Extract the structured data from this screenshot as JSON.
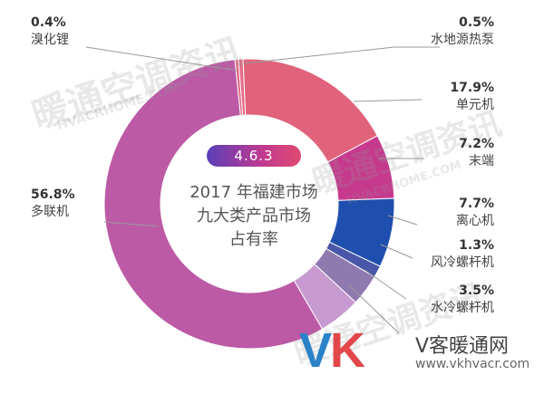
{
  "chart_data": {
    "type": "donut",
    "title": "2017 年福建市场 九大类产品市场 占有率",
    "title_lines": [
      "2017 年福建市场",
      "九大类产品市场",
      "占有率"
    ],
    "badge": "4.6.3",
    "slices": [
      {
        "name": "溴化锂",
        "value": 0.4,
        "label": "0.4%",
        "color": "#e46a86"
      },
      {
        "name": "水地源热泵",
        "value": 0.5,
        "label": "0.5%",
        "color": "#e46a86"
      },
      {
        "name": "单元机",
        "value": 17.9,
        "label": "17.9%",
        "color": "#e0637b"
      },
      {
        "name": "末端",
        "value": 7.2,
        "label": "7.2%",
        "color": "#c63a8e"
      },
      {
        "name": "离心机",
        "value": 7.7,
        "label": "7.7%",
        "color": "#1f4fae"
      },
      {
        "name": "风冷螺杆机",
        "value": 1.3,
        "label": "1.3%",
        "color": "#4a57a8"
      },
      {
        "name": "水冷螺杆机",
        "value": 3.5,
        "label": "3.5%",
        "color": "#8f7ab0"
      },
      {
        "name": "",
        "value": 4.7,
        "label": "",
        "color": "#c79ad0"
      },
      {
        "name": "多联机",
        "value": 56.8,
        "label": "56.8%",
        "color": "#bc5aa6"
      }
    ]
  },
  "labels": {
    "l1": {
      "pct": "0.4%",
      "name": "溴化锂"
    },
    "l2": {
      "pct": "0.5%",
      "name": "水地源热泵"
    },
    "l3": {
      "pct": "17.9%",
      "name": "单元机"
    },
    "l4": {
      "pct": "7.2%",
      "name": "末端"
    },
    "l5": {
      "pct": "7.7%",
      "name": "离心机"
    },
    "l6": {
      "pct": "1.3%",
      "name": "风冷螺杆机"
    },
    "l7": {
      "pct": "3.5%",
      "name": "水冷螺杆机"
    },
    "l8": {
      "pct": "56.8%",
      "name": "多联机"
    }
  },
  "logo": {
    "vk_v": "V",
    "vk_k": "K",
    "cn": "V客暖通网",
    "url": "www.vkhvacr.com"
  },
  "watermarks": {
    "w1": "暖通空调资讯",
    "w2": "HVACRHOME.COM",
    "w3": "暖通空调资讯",
    "w4": "HVACRHOME.COM"
  }
}
